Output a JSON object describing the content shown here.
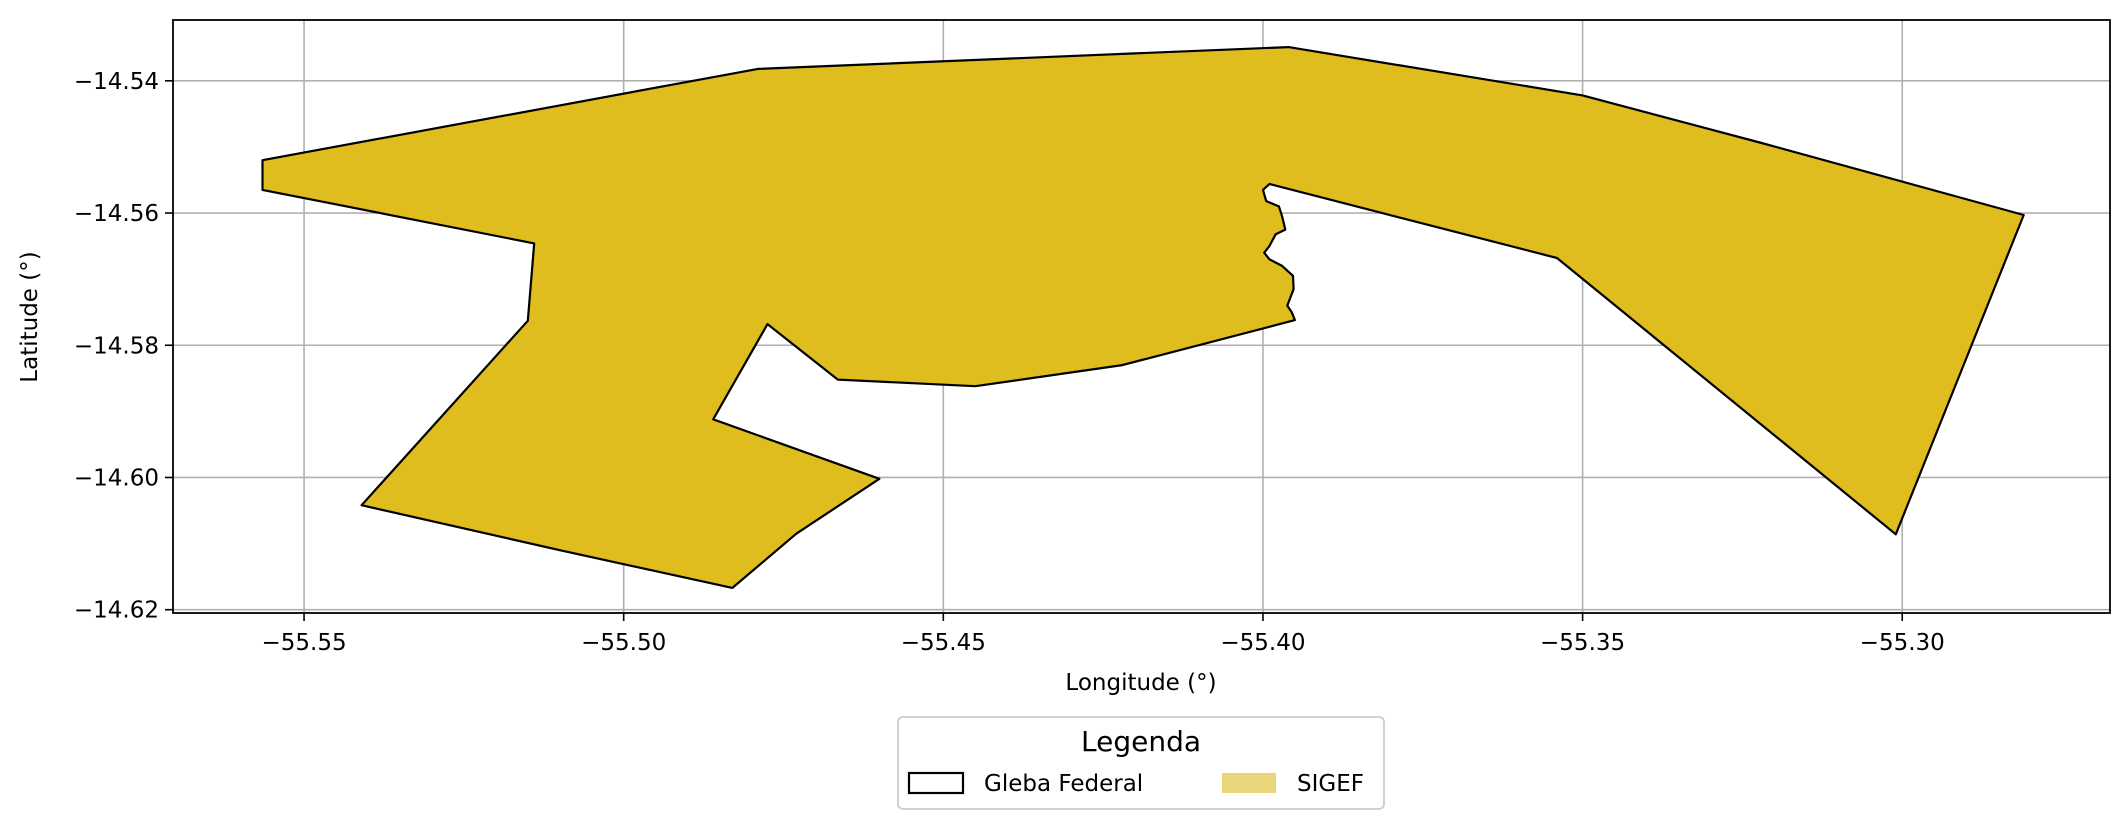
{
  "chart_data": {
    "type": "map",
    "xlabel": "Longitude (°)",
    "ylabel": "Latitude (°)",
    "xlim": [
      -55.5705,
      -55.2675
    ],
    "ylim": [
      -14.6205,
      -14.5308
    ],
    "xticks": [
      -55.55,
      -55.5,
      -55.45,
      -55.4,
      -55.35,
      -55.3
    ],
    "yticks": [
      -14.54,
      -14.56,
      -14.58,
      -14.6,
      -14.62
    ],
    "xtick_labels": [
      "−55.55",
      "−55.50",
      "−55.45",
      "−55.40",
      "−55.35",
      "−55.30"
    ],
    "ytick_labels": [
      "−14.54",
      "−14.56",
      "−14.58",
      "−14.60",
      "−14.62"
    ],
    "grid": true,
    "colors": {
      "sigef": "#dfbd1e",
      "sigef_legend": "#e9d57a",
      "edge": "#000000",
      "grid": "#b0b0b0"
    },
    "polygon": {
      "name": "SIGEF",
      "coordinates": [
        [
          -55.5565,
          -14.552
        ],
        [
          -55.479,
          -14.5382
        ],
        [
          -55.396,
          -14.5349
        ],
        [
          -55.35,
          -14.5422
        ],
        [
          -55.322,
          -14.5494
        ],
        [
          -55.281,
          -14.5603
        ],
        [
          -55.301,
          -14.6086
        ],
        [
          -55.354,
          -14.5668
        ],
        [
          -55.399,
          -14.5556
        ],
        [
          -55.4,
          -14.5565
        ],
        [
          -55.3995,
          -14.5582
        ],
        [
          -55.3975,
          -14.559
        ],
        [
          -55.397,
          -14.5605
        ],
        [
          -55.3965,
          -14.5625
        ],
        [
          -55.398,
          -14.5632
        ],
        [
          -55.399,
          -14.565
        ],
        [
          -55.3998,
          -14.566
        ],
        [
          -55.399,
          -14.567
        ],
        [
          -55.397,
          -14.568
        ],
        [
          -55.3953,
          -14.5695
        ],
        [
          -55.3952,
          -14.5715
        ],
        [
          -55.3962,
          -14.574
        ],
        [
          -55.3955,
          -14.575
        ],
        [
          -55.395,
          -14.5762
        ],
        [
          -55.422,
          -14.583
        ],
        [
          -55.445,
          -14.5862
        ],
        [
          -55.4665,
          -14.5852
        ],
        [
          -55.4775,
          -14.5768
        ],
        [
          -55.486,
          -14.5912
        ],
        [
          -55.46,
          -14.6002
        ],
        [
          -55.473,
          -14.6085
        ],
        [
          -55.483,
          -14.6167
        ],
        [
          -55.51,
          -14.611
        ],
        [
          -55.541,
          -14.6042
        ],
        [
          -55.515,
          -14.5763
        ],
        [
          -55.514,
          -14.5646
        ],
        [
          -55.5565,
          -14.5565
        ]
      ]
    },
    "legend": {
      "title": "Legenda",
      "placement": "bottom-center",
      "entries": [
        {
          "label": "Gleba Federal",
          "style": "outline"
        },
        {
          "label": "SIGEF",
          "style": "filled"
        }
      ]
    }
  }
}
